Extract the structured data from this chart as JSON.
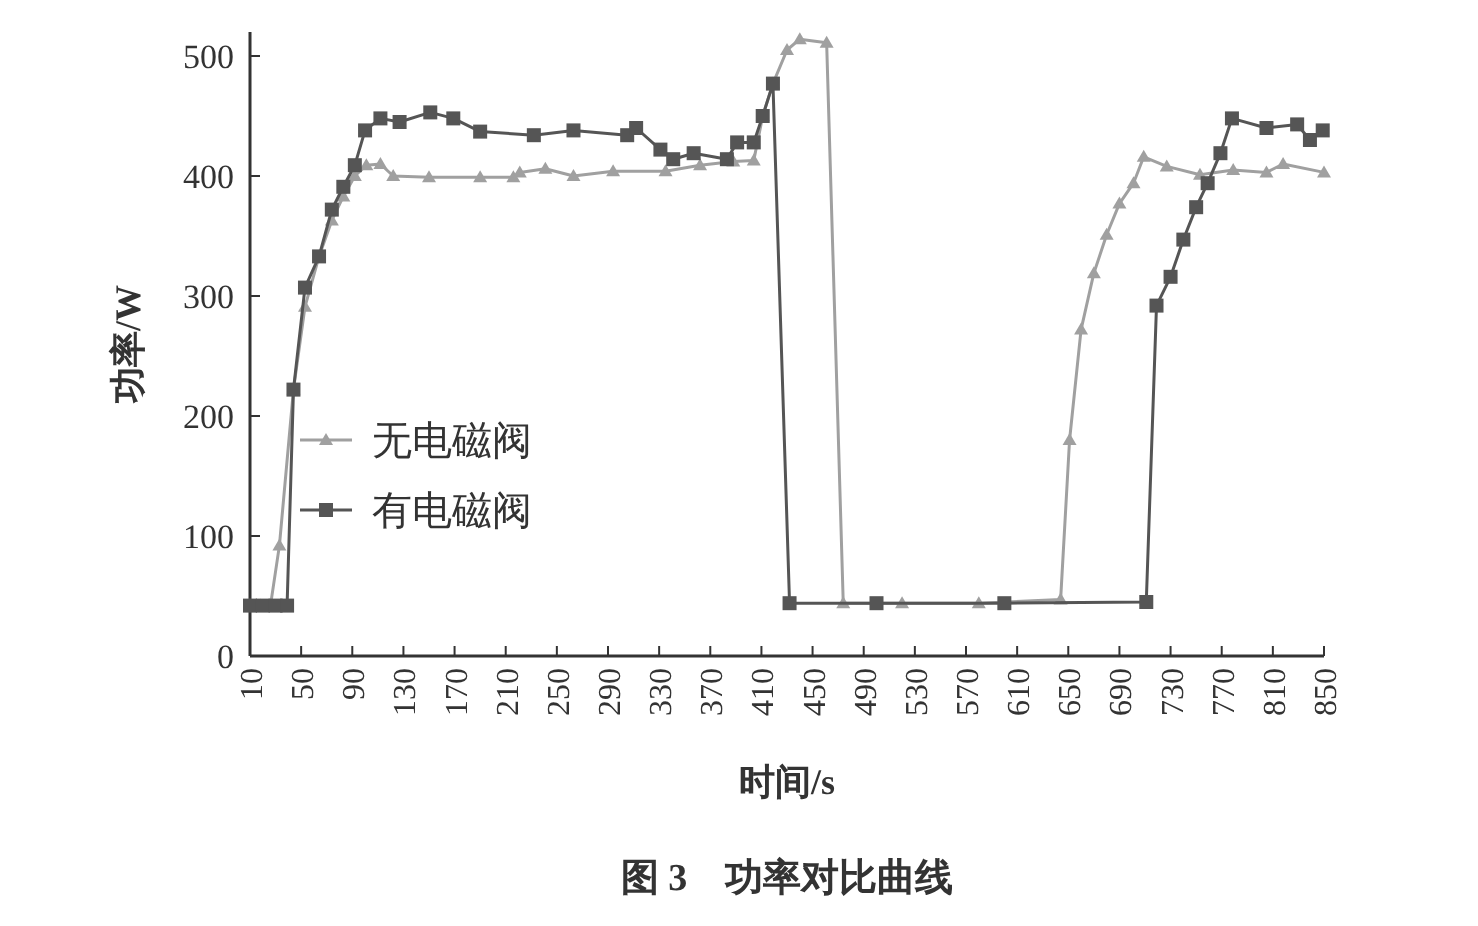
{
  "chart_data": {
    "type": "line",
    "title": "图 3　功率对比曲线",
    "xlabel": "时间/s",
    "ylabel": "功率/W",
    "xlim": [
      10,
      850
    ],
    "xticks": [
      10,
      50,
      90,
      130,
      170,
      210,
      250,
      290,
      330,
      370,
      410,
      450,
      490,
      530,
      570,
      610,
      650,
      690,
      730,
      770,
      810,
      850
    ],
    "ylim": [
      0,
      520
    ],
    "yticks": [
      0,
      100,
      200,
      300,
      400,
      500
    ],
    "grid": false,
    "legend": "left",
    "line_style": "solid",
    "series": [
      {
        "name": "无电磁阀",
        "color": "#a0a0a0",
        "marker": "triangle",
        "x": [
          10,
          18,
          26,
          33,
          44,
          53,
          64,
          74,
          83,
          92,
          101,
          112,
          122,
          150,
          190,
          216,
          221,
          241,
          263,
          294,
          335,
          362,
          388,
          404,
          411,
          419,
          430,
          440,
          461,
          474,
          520,
          580,
          644,
          651,
          660,
          670,
          680,
          690,
          701,
          709,
          727,
          753,
          779,
          805,
          818,
          850
        ],
        "values": [
          42,
          42,
          42,
          92,
          222,
          291,
          333,
          363,
          383,
          400,
          409,
          410,
          400,
          399,
          399,
          399,
          403,
          406,
          400,
          404,
          404,
          409,
          412,
          413,
          450,
          477,
          505,
          514,
          511,
          44,
          44,
          44,
          47,
          180,
          272,
          319,
          351,
          377,
          394,
          416,
          408,
          401,
          405,
          403,
          410,
          403
        ]
      },
      {
        "name": "有电磁阀",
        "color": "#555555",
        "marker": "square",
        "x": [
          10,
          20,
          30,
          39,
          44,
          53,
          64,
          74,
          83,
          92,
          100,
          112,
          127,
          151,
          169,
          190,
          232,
          263,
          305,
          312,
          331,
          341,
          357,
          383,
          391,
          404,
          411,
          419,
          432,
          500,
          600,
          711,
          719,
          730,
          740,
          750,
          759,
          769,
          778,
          805,
          829,
          839,
          849
        ],
        "values": [
          42,
          42,
          42,
          42,
          222,
          307,
          333,
          372,
          391,
          409,
          438,
          448,
          445,
          453,
          448,
          437,
          434,
          438,
          434,
          440,
          422,
          414,
          419,
          414,
          428,
          428,
          450,
          477,
          44,
          44,
          44,
          45,
          292,
          316,
          347,
          374,
          394,
          419,
          448,
          440,
          443,
          430,
          438
        ]
      }
    ]
  }
}
